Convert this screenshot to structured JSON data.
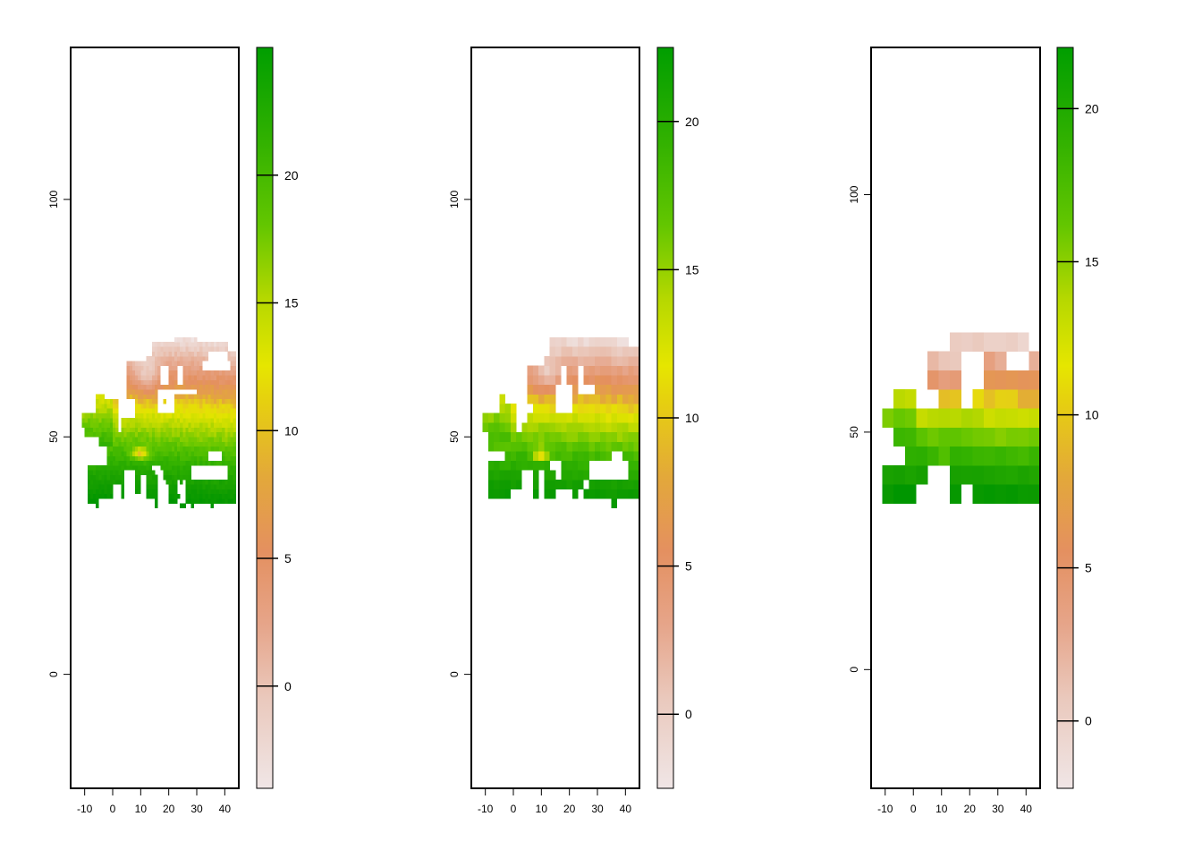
{
  "chart_data": [
    {
      "type": "heatmap",
      "x_ticks": [
        "-10",
        "0",
        "10",
        "20",
        "30",
        "40"
      ],
      "x_tick_values": [
        -10,
        0,
        10,
        20,
        30,
        40
      ],
      "y_ticks": [
        "0",
        "50",
        "100"
      ],
      "y_tick_values": [
        0,
        50,
        100
      ],
      "xlim": [
        -15,
        45
      ],
      "ylim": [
        -24,
        132
      ],
      "legend_ticks": [
        "0",
        "5",
        "10",
        "15",
        "20"
      ],
      "legend_tick_values": [
        0,
        5,
        10,
        15,
        20
      ],
      "legend_range": [
        -4,
        25
      ],
      "resolution": 1
    },
    {
      "type": "heatmap",
      "x_ticks": [
        "-10",
        "0",
        "10",
        "20",
        "30",
        "40"
      ],
      "x_tick_values": [
        -10,
        0,
        10,
        20,
        30,
        40
      ],
      "y_ticks": [
        "0",
        "50",
        "100"
      ],
      "y_tick_values": [
        0,
        50,
        100
      ],
      "xlim": [
        -15,
        45
      ],
      "ylim": [
        -24,
        132
      ],
      "legend_ticks": [
        "0",
        "5",
        "10",
        "15",
        "20"
      ],
      "legend_tick_values": [
        0,
        5,
        10,
        15,
        20
      ],
      "legend_range": [
        -2.5,
        22.5
      ],
      "resolution": 2
    },
    {
      "type": "heatmap",
      "x_ticks": [
        "-10",
        "0",
        "10",
        "20",
        "30",
        "40"
      ],
      "x_tick_values": [
        -10,
        0,
        10,
        20,
        30,
        40
      ],
      "y_ticks": [
        "0",
        "50",
        "100"
      ],
      "y_tick_values": [
        0,
        50,
        100
      ],
      "xlim": [
        -15,
        45
      ],
      "ylim": [
        -25,
        131
      ],
      "legend_ticks": [
        "0",
        "5",
        "10",
        "15",
        "20"
      ],
      "legend_tick_values": [
        0,
        5,
        10,
        15,
        20
      ],
      "legend_range": [
        -2.2,
        22
      ],
      "resolution": 4
    }
  ],
  "colors": {
    "palette": [
      "#f2f2f2",
      "#eac9bd",
      "#e6a58a",
      "#e49060",
      "#e3a83a",
      "#e6c41a",
      "#e6e600",
      "#b6d800",
      "#63c600",
      "#33b200",
      "#1e9e00",
      "#009e00"
    ],
    "frame": "#000000"
  }
}
